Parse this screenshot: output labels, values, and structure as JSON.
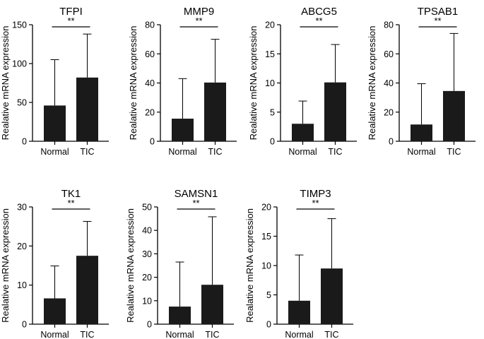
{
  "chart_data": [
    {
      "type": "bar",
      "title": "TFPI",
      "ylabel": "Realative mRNA expression",
      "categories": [
        "Normal",
        "TIC"
      ],
      "values": [
        46,
        82
      ],
      "errors": [
        105,
        138
      ],
      "ylim": [
        0,
        150
      ],
      "yticks": [
        0,
        50,
        100,
        150
      ],
      "significance": "**",
      "bar_color": "#1a1a1a"
    },
    {
      "type": "bar",
      "title": "MMP9",
      "ylabel": "Realative mRNA expression",
      "categories": [
        "Normal",
        "TIC"
      ],
      "values": [
        15.5,
        40.3
      ],
      "errors": [
        43,
        70
      ],
      "ylim": [
        0,
        80
      ],
      "yticks": [
        0,
        20,
        40,
        60,
        80
      ],
      "significance": "**",
      "bar_color": "#1a1a1a"
    },
    {
      "type": "bar",
      "title": "ABCG5",
      "ylabel": "Realative mRNA expression",
      "categories": [
        "Normal",
        "TIC"
      ],
      "values": [
        3,
        10.1
      ],
      "errors": [
        6.9,
        16.6
      ],
      "ylim": [
        0,
        20
      ],
      "yticks": [
        0,
        5,
        10,
        15,
        20
      ],
      "significance": "**",
      "bar_color": "#1a1a1a"
    },
    {
      "type": "bar",
      "title": "TPSAB1",
      "ylabel": "Realative mRNA expression",
      "categories": [
        "Normal",
        "TIC"
      ],
      "values": [
        11.5,
        34.5
      ],
      "errors": [
        39.5,
        74
      ],
      "ylim": [
        0,
        80
      ],
      "yticks": [
        0,
        20,
        40,
        60,
        80
      ],
      "significance": "**",
      "bar_color": "#1a1a1a"
    },
    {
      "type": "bar",
      "title": "TK1",
      "ylabel": "Realative mRNA expression",
      "categories": [
        "Normal",
        "TIC"
      ],
      "values": [
        6.6,
        17.5
      ],
      "errors": [
        14.9,
        26.3
      ],
      "ylim": [
        0,
        30
      ],
      "yticks": [
        0,
        10,
        20,
        30
      ],
      "significance": "**",
      "bar_color": "#1a1a1a"
    },
    {
      "type": "bar",
      "title": "SAMSN1",
      "ylabel": "Realative mRNA expression",
      "categories": [
        "Normal",
        "TIC"
      ],
      "values": [
        7.5,
        16.8
      ],
      "errors": [
        26.5,
        45.8
      ],
      "ylim": [
        0,
        50
      ],
      "yticks": [
        0,
        10,
        20,
        30,
        40,
        50
      ],
      "significance": "**",
      "bar_color": "#1a1a1a"
    },
    {
      "type": "bar",
      "title": "TIMP3",
      "ylabel": "Realative mRNA expression",
      "categories": [
        "Normal",
        "TIC"
      ],
      "values": [
        4,
        9.5
      ],
      "errors": [
        11.8,
        18
      ],
      "ylim": [
        0,
        20
      ],
      "yticks": [
        0,
        5,
        10,
        15,
        20
      ],
      "significance": "**",
      "bar_color": "#1a1a1a"
    }
  ]
}
